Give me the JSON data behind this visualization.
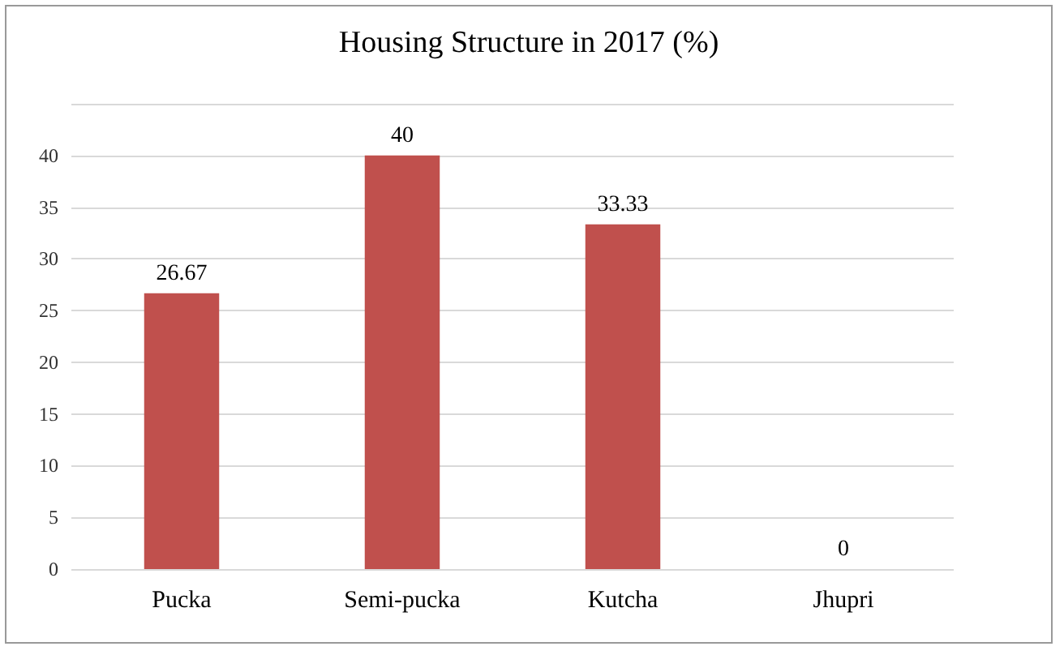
{
  "chart_data": {
    "type": "bar",
    "title": "Housing Structure in 2017 (%)",
    "categories": [
      "Pucka",
      "Semi-pucka",
      "Kutcha",
      "Jhupri"
    ],
    "values": [
      26.67,
      40,
      33.33,
      0
    ],
    "color": "#c0504d",
    "ylim": [
      0,
      45
    ],
    "yticks": [
      0,
      5,
      10,
      15,
      20,
      25,
      30,
      35,
      40,
      {
        "value": 45,
        "label": null
      }
    ],
    "grid": "y",
    "data_labels": true
  }
}
